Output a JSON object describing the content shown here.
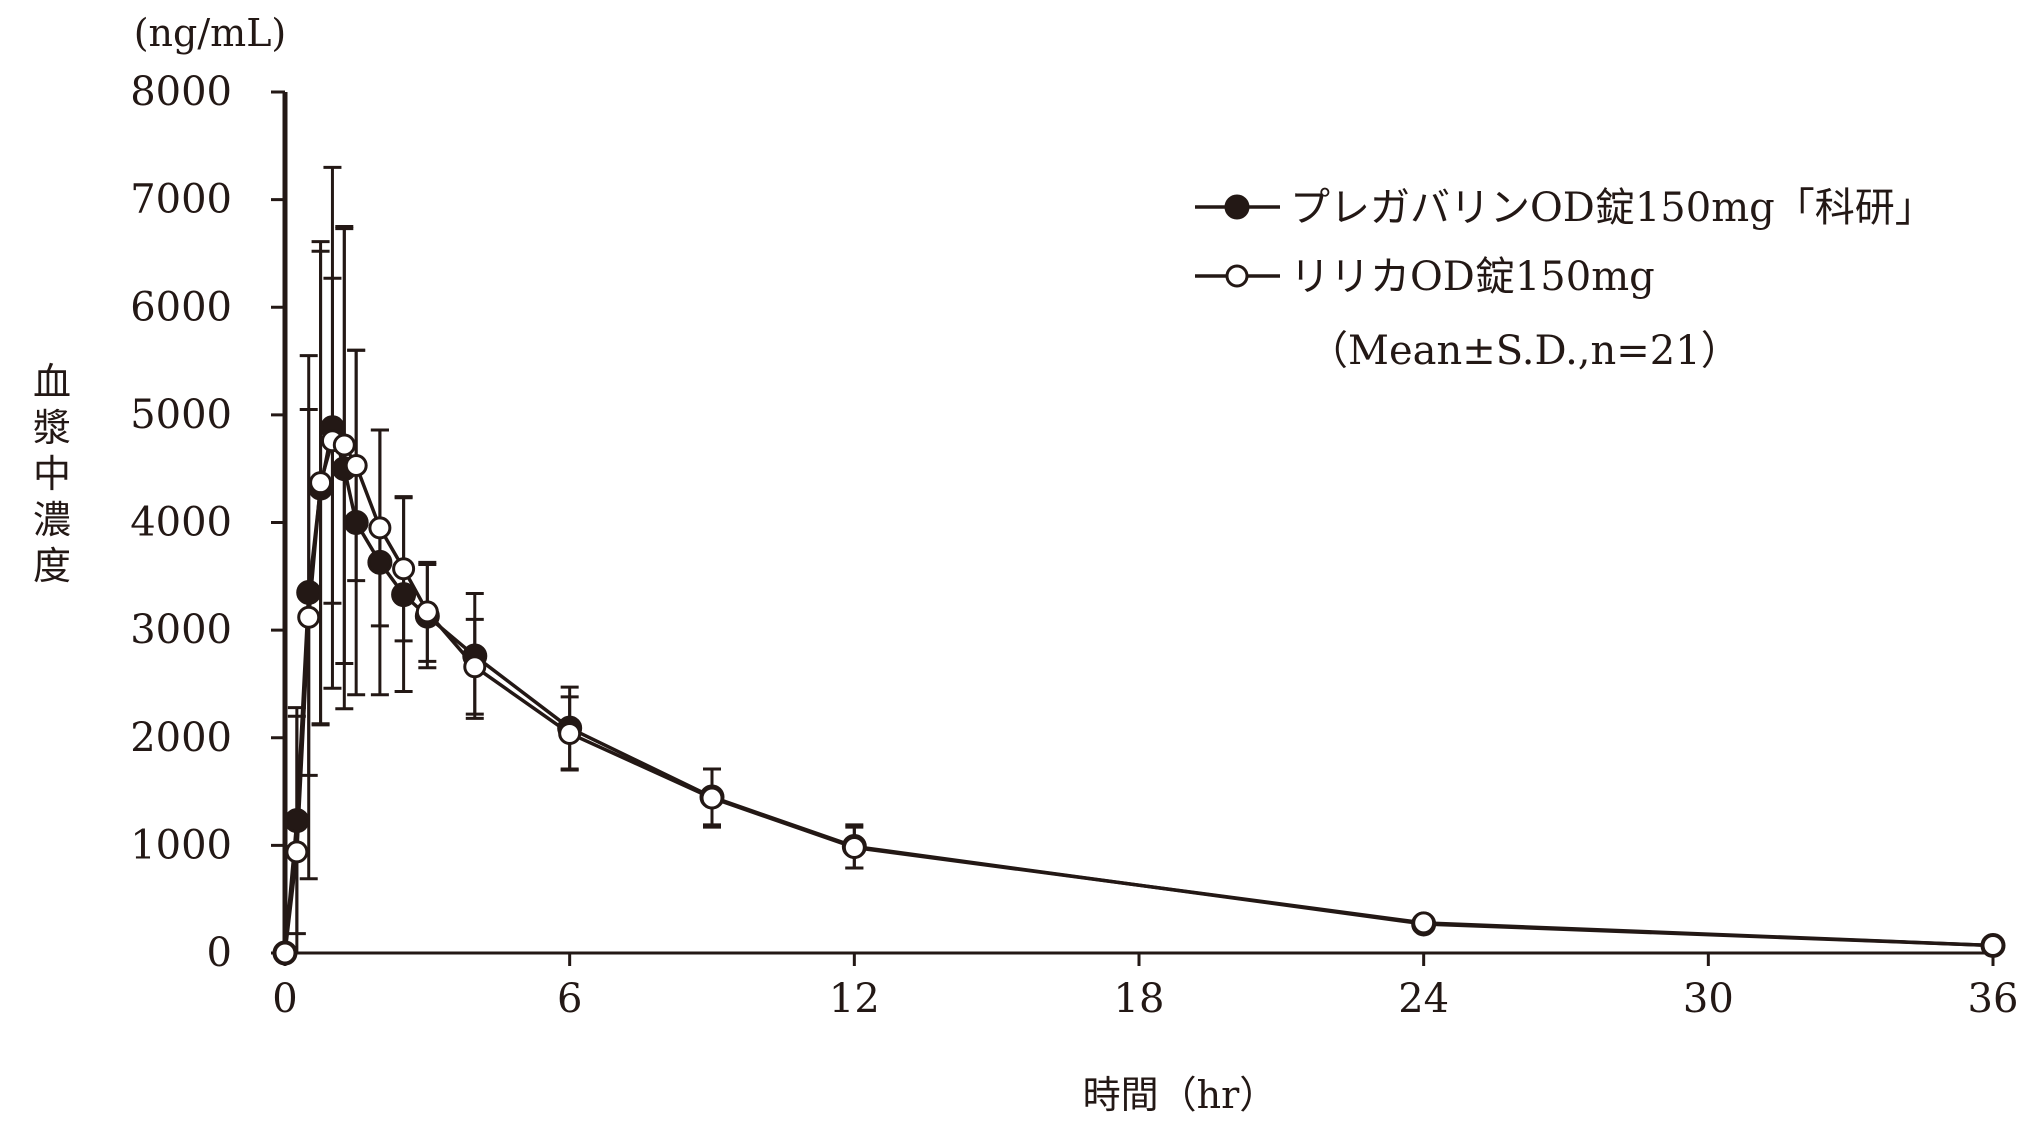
{
  "chart_data": {
    "type": "line",
    "title": "",
    "xlabel": "時間（hr）",
    "ylabel": "血漿中濃度",
    "yunit": "(ng/mL)",
    "xlim": [
      0,
      36
    ],
    "ylim": [
      0,
      8000
    ],
    "xticks": [
      0,
      6,
      12,
      18,
      24,
      30,
      36
    ],
    "yticks": [
      0,
      1000,
      2000,
      3000,
      4000,
      5000,
      6000,
      7000,
      8000
    ],
    "grid": false,
    "legend_position": "top-right",
    "legend_note": "（Mean±S.D.,n=21）",
    "colors": {
      "ink": "#231815",
      "open_fill": "#ffffff"
    },
    "series": [
      {
        "name": "プレガバリンOD錠150mg「科研」",
        "marker": "filled-circle",
        "x": [
          0,
          0.25,
          0.5,
          0.75,
          1,
          1.25,
          1.5,
          2,
          2.5,
          3,
          4,
          6,
          9,
          12,
          24,
          36
        ],
        "y": [
          0,
          1230,
          3350,
          4320,
          4880,
          4500,
          4000,
          3630,
          3330,
          3130,
          2760,
          2090,
          1450,
          990,
          270,
          70
        ],
        "sd": [
          0,
          1050,
          1700,
          2200,
          2420,
          2230,
          1600,
          1230,
          900,
          480,
          580,
          380,
          260,
          200,
          0,
          0
        ]
      },
      {
        "name": "リリカOD錠150mg",
        "marker": "open-circle",
        "x": [
          0,
          0.25,
          0.5,
          0.75,
          1,
          1.25,
          1.5,
          2,
          2.5,
          3,
          4,
          6,
          9,
          12,
          24,
          36
        ],
        "y": [
          0,
          940,
          3120,
          4370,
          4760,
          4720,
          4530,
          3950,
          3570,
          3170,
          2660,
          2040,
          1440,
          980,
          280,
          70
        ],
        "sd": [
          0,
          1260,
          2430,
          2240,
          1510,
          2030,
          1070,
          910,
          670,
          460,
          440,
          340,
          270,
          190,
          0,
          0
        ]
      }
    ]
  }
}
